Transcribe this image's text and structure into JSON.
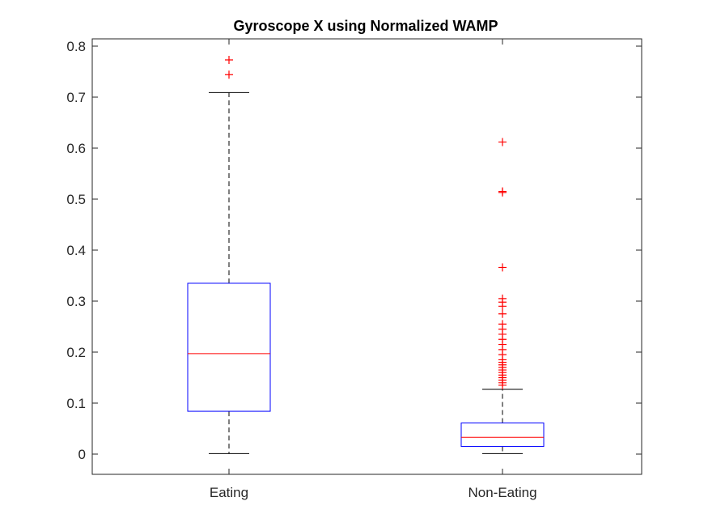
{
  "chart_data": {
    "type": "boxplot",
    "title": "Gyroscope X using Normalized WAMP",
    "xlabel": "",
    "ylabel": "",
    "ylim": [
      -0.04,
      0.81
    ],
    "yticks": [
      0,
      0.1,
      0.2,
      0.3,
      0.4,
      0.5,
      0.6,
      0.7,
      0.8
    ],
    "ytick_labels": [
      "0",
      "0.1",
      "0.2",
      "0.3",
      "0.4",
      "0.5",
      "0.6",
      "0.7",
      "0.8"
    ],
    "categories": [
      "Eating",
      "Non-Eating"
    ],
    "grid": false,
    "boxes": [
      {
        "category": "Eating",
        "whisker_low": 0.001,
        "q1": 0.084,
        "median": 0.197,
        "q3": 0.335,
        "whisker_high": 0.709,
        "outliers": [
          0.744,
          0.773
        ]
      },
      {
        "category": "Non-Eating",
        "whisker_low": 0.001,
        "q1": 0.015,
        "median": 0.033,
        "q3": 0.061,
        "whisker_high": 0.127,
        "outliers": [
          0.135,
          0.14,
          0.145,
          0.15,
          0.155,
          0.16,
          0.165,
          0.17,
          0.175,
          0.18,
          0.185,
          0.195,
          0.205,
          0.215,
          0.225,
          0.235,
          0.245,
          0.255,
          0.275,
          0.29,
          0.298,
          0.305,
          0.366,
          0.513,
          0.515,
          0.612
        ]
      }
    ],
    "colors": {
      "box": "#0000ff",
      "median": "#ff0000",
      "whisker": "#000000",
      "outlier": "#ff0000",
      "axis": "#262626"
    }
  }
}
